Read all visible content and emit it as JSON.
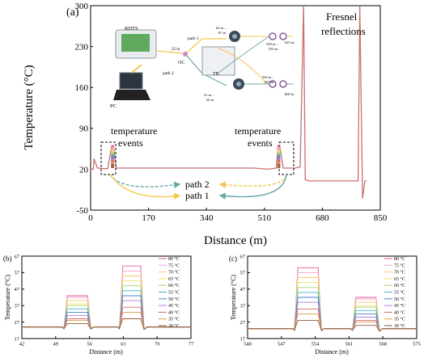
{
  "figure": {
    "panel_a_label": "(a)",
    "panel_b_label": "(b)",
    "panel_c_label": "(c)"
  },
  "inset": {
    "rdts": "RDTS",
    "pc": "PC",
    "oc": "OC",
    "tb": "TB",
    "path1": "path 1",
    "path2": "path 2",
    "d22": "22 m",
    "d62": "62 m –",
    "d67": "67 m",
    "d550": "550 m –",
    "d555": "555 m",
    "d625": "625 m",
    "d51": "51 m –",
    "d56": "56 m",
    "d562": "562 m –",
    "d567": "567 m",
    "d800": "800 m"
  },
  "annotations": {
    "fresnel_line1": "Fresnel",
    "fresnel_line2": "reflections",
    "temp_events_left_1": "temperature",
    "temp_events_left_2": "events",
    "temp_events_right_1": "temperature",
    "temp_events_right_2": "events",
    "path2": "path 2",
    "path1": "path 1"
  },
  "colors": {
    "main_trace": "#c8706e",
    "arrow_yellow": "#f2c94c",
    "arrow_teal": "#6aa7a8"
  },
  "chart_data": [
    {
      "type": "line",
      "panel": "(a)",
      "xlabel": "Distance (m)",
      "ylabel": "Temperature (°C)",
      "xlim": [
        0,
        850
      ],
      "ylim": [
        -50,
        300
      ],
      "xticks": [
        0,
        170,
        340,
        510,
        680,
        850
      ],
      "yticks": [
        -50,
        20,
        90,
        160,
        230,
        300
      ],
      "series": [
        {
          "x": [
            0,
            8,
            10,
            20,
            40,
            50,
            62,
            67,
            75,
            120,
            200,
            300,
            400,
            480,
            520,
            545,
            550,
            555,
            565,
            590,
            600,
            615,
            625,
            630,
            640,
            660,
            700,
            760,
            785,
            790,
            798,
            805,
            810
          ],
          "y": [
            20,
            20,
            38,
            22,
            21,
            21,
            60,
            60,
            22,
            22,
            22,
            22,
            22,
            22,
            20,
            22,
            60,
            60,
            22,
            22,
            22,
            24,
            300,
            2,
            0,
            0,
            0,
            0,
            0,
            300,
            -30,
            0,
            0
          ]
        }
      ]
    },
    {
      "type": "line",
      "panel": "(b)",
      "xlabel": "Distance (m)",
      "ylabel": "Temperature (°C)",
      "xlim": [
        42,
        77
      ],
      "ylim": [
        17,
        67
      ],
      "xticks": [
        42,
        49,
        56,
        63,
        70,
        77
      ],
      "yticks": [
        17,
        27,
        37,
        47,
        57,
        67
      ],
      "event1_range": [
        51,
        56
      ],
      "event2_range": [
        62.5,
        67
      ],
      "baseline": 24,
      "series": [
        {
          "name": "80 °C",
          "color": "#e8569a",
          "values": [
            24,
            43,
            61
          ]
        },
        {
          "name": "75 °C",
          "color": "#f4a3c8",
          "values": [
            24,
            42,
            58
          ]
        },
        {
          "name": "70 °C",
          "color": "#f7c96a",
          "values": [
            24,
            40,
            55
          ]
        },
        {
          "name": "65 °C",
          "color": "#f0e26a",
          "values": [
            24,
            38,
            52
          ]
        },
        {
          "name": "60 °C",
          "color": "#9fd86a",
          "values": [
            24,
            37,
            49
          ]
        },
        {
          "name": "55 °C",
          "color": "#3fb8c8",
          "values": [
            24,
            35,
            46
          ]
        },
        {
          "name": "50 °C",
          "color": "#4a7ed6",
          "values": [
            24,
            33,
            43
          ]
        },
        {
          "name": "45 °C",
          "color": "#b07ad8",
          "values": [
            24,
            31,
            40
          ]
        },
        {
          "name": "40 °C",
          "color": "#d86a5a",
          "values": [
            24,
            29,
            36
          ]
        },
        {
          "name": "35 °C",
          "color": "#e09a4a",
          "values": [
            24,
            28,
            33
          ]
        },
        {
          "name": "30 °C",
          "color": "#8a5a3a",
          "values": [
            24,
            26,
            29
          ]
        }
      ]
    },
    {
      "type": "line",
      "panel": "(c)",
      "xlabel": "Distance (m)",
      "ylabel": "Temperature (°C)",
      "xlim": [
        540,
        575
      ],
      "ylim": [
        17,
        67
      ],
      "xticks": [
        540,
        547,
        554,
        561,
        568,
        575
      ],
      "yticks": [
        17,
        27,
        37,
        47,
        57,
        67
      ],
      "event1_range": [
        550,
        555
      ],
      "event2_range": [
        562,
        567
      ],
      "baseline": 23,
      "series": [
        {
          "name": "80 °C",
          "color": "#e8569a",
          "values": [
            23,
            60,
            42
          ]
        },
        {
          "name": "75 °C",
          "color": "#f4a3c8",
          "values": [
            23,
            57,
            41
          ]
        },
        {
          "name": "70 °C",
          "color": "#f7c96a",
          "values": [
            23,
            54,
            39
          ]
        },
        {
          "name": "65 °C",
          "color": "#f0e26a",
          "values": [
            23,
            51,
            37
          ]
        },
        {
          "name": "60 °C",
          "color": "#9fd86a",
          "values": [
            23,
            48,
            36
          ]
        },
        {
          "name": "55 °C",
          "color": "#3fb8c8",
          "values": [
            23,
            45,
            34
          ]
        },
        {
          "name": "50 °C",
          "color": "#4a7ed6",
          "values": [
            23,
            42,
            32
          ]
        },
        {
          "name": "45 °C",
          "color": "#b07ad8",
          "values": [
            23,
            39,
            30
          ]
        },
        {
          "name": "40 °C",
          "color": "#d86a5a",
          "values": [
            23,
            35,
            28
          ]
        },
        {
          "name": "35 °C",
          "color": "#e09a4a",
          "values": [
            23,
            32,
            27
          ]
        },
        {
          "name": "30 °C",
          "color": "#8a5a3a",
          "values": [
            23,
            28,
            25
          ]
        }
      ]
    }
  ]
}
